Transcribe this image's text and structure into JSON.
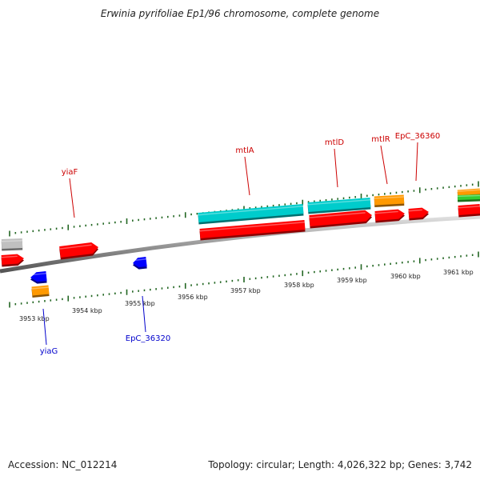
{
  "title": "Erwinia pyrifoliae Ep1/96 chromosome, complete genome",
  "footer": {
    "accession": "Accession: NC_012214",
    "stats": "Topology: circular; Length: 4,026,322 bp; Genes: 3,742"
  },
  "scale": {
    "unit": "kbp",
    "tick_labels": [
      "3953 kbp",
      "3954 kbp",
      "3955 kbp",
      "3956 kbp",
      "3957 kbp",
      "3958 kbp",
      "3959 kbp",
      "3960 kbp",
      "3961 kbp"
    ]
  },
  "colors": {
    "cds": "#ff0000",
    "rna_like": "#00cccc",
    "orange_feature": "#ff9900",
    "blue_feature": "#0000ff",
    "gray_feature": "#c0c0c0",
    "green_feature": "#33cc33",
    "tick": "#226622",
    "label_plus": "#cc0000",
    "label_minus": "#0000cc"
  },
  "gene_labels_plus": [
    "yiaF",
    "mtlA",
    "mtlD",
    "mtlR",
    "EpC_36360"
  ],
  "gene_labels_minus": [
    "yiaG",
    "EpC_36320"
  ]
}
